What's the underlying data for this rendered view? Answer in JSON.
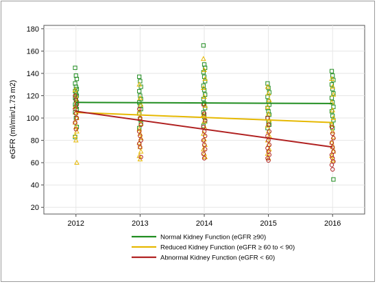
{
  "chart_data": {
    "type": "scatter",
    "ylabel": "eGFR (ml/min/1.73 m2)",
    "xlabel": "",
    "x_ticks": [
      "2012",
      "2013",
      "2014",
      "2015",
      "2016"
    ],
    "y_ticks": [
      "20",
      "40",
      "60",
      "80",
      "100",
      "120",
      "140",
      "160",
      "180"
    ],
    "xlim": [
      2011.5,
      2016.5
    ],
    "ylim": [
      14,
      183
    ],
    "grid": true,
    "legend_position": "bottom",
    "series": [
      {
        "name": "Normal Kidney Function (eGFR ≥90)",
        "color": "#1e8c1e",
        "marker": "square",
        "trend": [
          [
            2012,
            114
          ],
          [
            2016,
            113
          ]
        ],
        "points": {
          "2012": [
            145,
            138,
            135,
            131,
            128,
            126,
            124,
            122,
            120,
            118,
            116,
            114,
            112,
            110,
            108,
            105,
            100,
            92,
            83
          ],
          "2013": [
            137,
            133,
            128,
            124,
            120,
            117,
            114,
            111,
            108,
            104,
            99,
            95,
            91
          ],
          "2014": [
            165,
            148,
            145,
            141,
            137,
            133,
            129,
            125,
            121,
            117,
            113,
            109,
            105,
            101,
            97,
            93
          ],
          "2015": [
            131,
            127,
            123,
            119,
            115,
            112,
            109,
            106,
            103,
            100,
            97,
            94,
            91
          ],
          "2016": [
            142,
            138,
            134,
            130,
            126,
            122,
            118,
            114,
            110,
            106,
            102,
            98,
            94,
            91,
            45
          ]
        }
      },
      {
        "name": "Reduced Kidney Function (eGFR ≥ 60 to < 90)",
        "color": "#e6b800",
        "marker": "triangle",
        "trend": [
          [
            2012,
            105
          ],
          [
            2016,
            96
          ]
        ],
        "points": {
          "2012": [
            125,
            120,
            115,
            110,
            105,
            100,
            96,
            92,
            88,
            84,
            80,
            60
          ],
          "2013": [
            130,
            118,
            112,
            106,
            100,
            95,
            90,
            86,
            82,
            78,
            74,
            70,
            66,
            63
          ],
          "2014": [
            153,
            143,
            135,
            127,
            119,
            111,
            103,
            97,
            91,
            86,
            81,
            76,
            72,
            68,
            65
          ],
          "2015": [
            128,
            122,
            116,
            110,
            104,
            98,
            93,
            88,
            84,
            80,
            76,
            72,
            68,
            64
          ],
          "2016": [
            135,
            128,
            121,
            114,
            107,
            100,
            94,
            88,
            83,
            78,
            74,
            70,
            66,
            62
          ]
        }
      },
      {
        "name": "Abnormal Kidney Function (eGFR < 60)",
        "color": "#b02020",
        "marker": "circle",
        "trend": [
          [
            2012,
            106
          ],
          [
            2016,
            74
          ]
        ],
        "points": {
          "2012": [
            120,
            116,
            112,
            108,
            104,
            100,
            96,
            90
          ],
          "2013": [
            108,
            100,
            94,
            88,
            84,
            80,
            77,
            74,
            65
          ],
          "2014": [
            112,
            104,
            98,
            92,
            88,
            84,
            80,
            76,
            72,
            68,
            64
          ],
          "2015": [
            100,
            94,
            88,
            84,
            80,
            76,
            73,
            70,
            67,
            64,
            62
          ],
          "2016": [
            92,
            86,
            82,
            78,
            74,
            70,
            67,
            64,
            61,
            58,
            54
          ]
        }
      }
    ]
  }
}
